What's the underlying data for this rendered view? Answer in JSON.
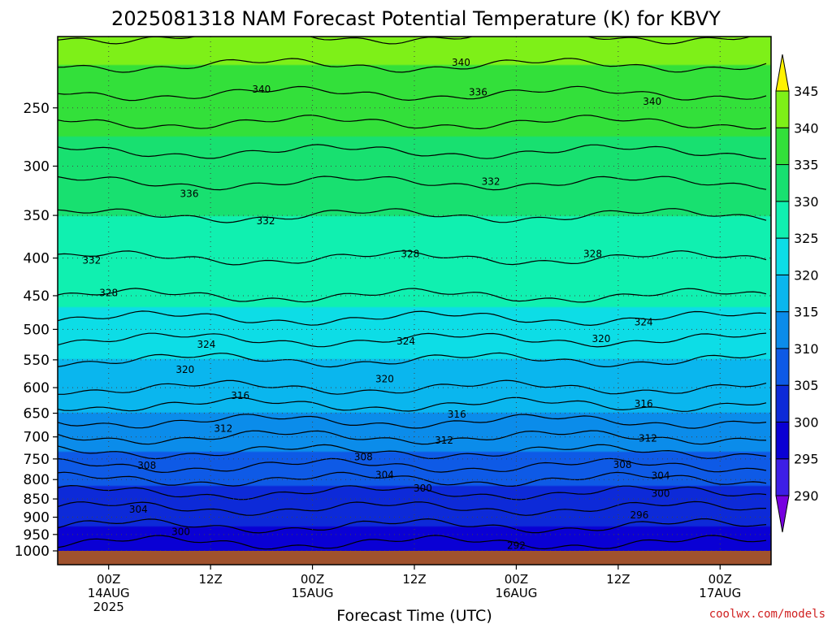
{
  "chart_data": {
    "type": "heatmap",
    "title": "2025081318 NAM Forecast Potential Temperature (K) for KBVY",
    "xlabel": "Forecast Time (UTC)",
    "credit": "coolwx.com/models",
    "y_scale": "log-pressure",
    "ylim": [
      1000,
      200
    ],
    "y_ticks": [
      "250",
      "300",
      "350",
      "400",
      "450",
      "500",
      "550",
      "600",
      "650",
      "700",
      "750",
      "800",
      "850",
      "900",
      "950",
      "1000"
    ],
    "x_ticks": [
      {
        "hour": 6,
        "label": "00Z",
        "date": "14AUG",
        "year": "2025"
      },
      {
        "hour": 18,
        "label": "12Z",
        "date": "",
        "year": ""
      },
      {
        "hour": 30,
        "label": "00Z",
        "date": "15AUG",
        "year": ""
      },
      {
        "hour": 42,
        "label": "12Z",
        "date": "",
        "year": ""
      },
      {
        "hour": 54,
        "label": "00Z",
        "date": "16AUG",
        "year": ""
      },
      {
        "hour": 66,
        "label": "12Z",
        "date": "",
        "year": ""
      },
      {
        "hour": 78,
        "label": "00Z",
        "date": "17AUG",
        "year": ""
      }
    ],
    "xlim_hours": [
      0,
      84
    ],
    "colorbar": {
      "levels": [
        290,
        295,
        300,
        305,
        310,
        315,
        320,
        325,
        330,
        335,
        340,
        345
      ],
      "labels": [
        "345",
        "340",
        "335",
        "330",
        "325",
        "320",
        "315",
        "310",
        "305",
        "300",
        "295",
        "290"
      ],
      "colors": [
        "#7700e0",
        "#3d1ee6",
        "#0a00d4",
        "#0d2ad8",
        "#0e5ae6",
        "#0b8cea",
        "#0ab6ee",
        "#0ddde6",
        "#10f0b0",
        "#18e070",
        "#33e03a",
        "#7ef018",
        "#bce818",
        "#fff200"
      ]
    },
    "profile_time_hours": 48,
    "profile": [
      {
        "p": 1000,
        "theta": 297
      },
      {
        "p": 950,
        "theta": 299
      },
      {
        "p": 900,
        "theta": 301
      },
      {
        "p": 850,
        "theta": 303
      },
      {
        "p": 800,
        "theta": 306
      },
      {
        "p": 750,
        "theta": 309
      },
      {
        "p": 700,
        "theta": 312
      },
      {
        "p": 650,
        "theta": 315
      },
      {
        "p": 600,
        "theta": 318
      },
      {
        "p": 550,
        "theta": 320
      },
      {
        "p": 500,
        "theta": 323
      },
      {
        "p": 450,
        "theta": 326
      },
      {
        "p": 400,
        "theta": 328
      },
      {
        "p": 350,
        "theta": 330
      },
      {
        "p": 300,
        "theta": 333
      },
      {
        "p": 250,
        "theta": 337
      },
      {
        "p": 200,
        "theta": 342
      }
    ],
    "contour_labels": [
      {
        "text": "340",
        "hour": 47.5,
        "p": 217
      },
      {
        "text": "340",
        "hour": 24,
        "p": 236
      },
      {
        "text": "336",
        "hour": 49.5,
        "p": 238
      },
      {
        "text": "340",
        "hour": 70,
        "p": 245
      },
      {
        "text": "336",
        "hour": 15.5,
        "p": 327
      },
      {
        "text": "332",
        "hour": 51,
        "p": 315
      },
      {
        "text": "332",
        "hour": 24.5,
        "p": 356
      },
      {
        "text": "332",
        "hour": 4,
        "p": 403
      },
      {
        "text": "328",
        "hour": 41.5,
        "p": 395
      },
      {
        "text": "328",
        "hour": 63,
        "p": 395
      },
      {
        "text": "328",
        "hour": 6,
        "p": 446
      },
      {
        "text": "324",
        "hour": 69,
        "p": 489
      },
      {
        "text": "324",
        "hour": 17.5,
        "p": 524
      },
      {
        "text": "324",
        "hour": 41,
        "p": 519
      },
      {
        "text": "320",
        "hour": 64,
        "p": 515
      },
      {
        "text": "320",
        "hour": 15,
        "p": 567
      },
      {
        "text": "320",
        "hour": 38.5,
        "p": 584
      },
      {
        "text": "316",
        "hour": 21.5,
        "p": 615
      },
      {
        "text": "316",
        "hour": 47,
        "p": 652
      },
      {
        "text": "316",
        "hour": 69,
        "p": 631
      },
      {
        "text": "312",
        "hour": 19.5,
        "p": 682
      },
      {
        "text": "312",
        "hour": 45.5,
        "p": 708
      },
      {
        "text": "312",
        "hour": 69.5,
        "p": 703
      },
      {
        "text": "308",
        "hour": 10.5,
        "p": 766
      },
      {
        "text": "308",
        "hour": 36,
        "p": 746
      },
      {
        "text": "308",
        "hour": 66.5,
        "p": 764
      },
      {
        "text": "304",
        "hour": 38.5,
        "p": 788
      },
      {
        "text": "304",
        "hour": 71,
        "p": 790
      },
      {
        "text": "304",
        "hour": 9.5,
        "p": 878
      },
      {
        "text": "300",
        "hour": 43,
        "p": 822
      },
      {
        "text": "300",
        "hour": 71,
        "p": 836
      },
      {
        "text": "300",
        "hour": 14.5,
        "p": 942
      },
      {
        "text": "296",
        "hour": 68.5,
        "p": 894
      },
      {
        "text": "292",
        "hour": 54,
        "p": 983
      }
    ]
  }
}
